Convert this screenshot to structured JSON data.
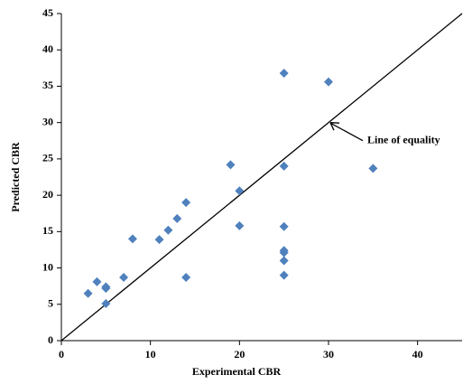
{
  "chart_data": {
    "type": "scatter",
    "x_label": "Experimental CBR",
    "y_label": "Predicted CBR",
    "x": [
      3,
      4,
      5,
      5,
      5,
      7,
      8,
      11,
      12,
      13,
      14,
      14,
      19,
      20,
      20,
      25,
      25,
      25,
      25,
      25,
      25,
      25,
      30,
      35
    ],
    "values": [
      6.5,
      8.1,
      7.4,
      7.2,
      5.1,
      8.7,
      14,
      13.9,
      15.2,
      16.8,
      19,
      8.7,
      24.2,
      20.6,
      15.8,
      36.8,
      24,
      15.7,
      12.4,
      12.1,
      11,
      9,
      35.6,
      23.7
    ],
    "color": "#4f81bd",
    "xlim": [
      0,
      45
    ],
    "ylim": [
      0,
      45
    ],
    "xticks": [
      0,
      10,
      20,
      30,
      40
    ],
    "yticks": [
      0,
      5,
      10,
      15,
      20,
      25,
      30,
      35,
      40,
      45
    ],
    "grid": false,
    "annotation": {
      "text": "Line of equality",
      "x": 30,
      "y": 30
    }
  }
}
